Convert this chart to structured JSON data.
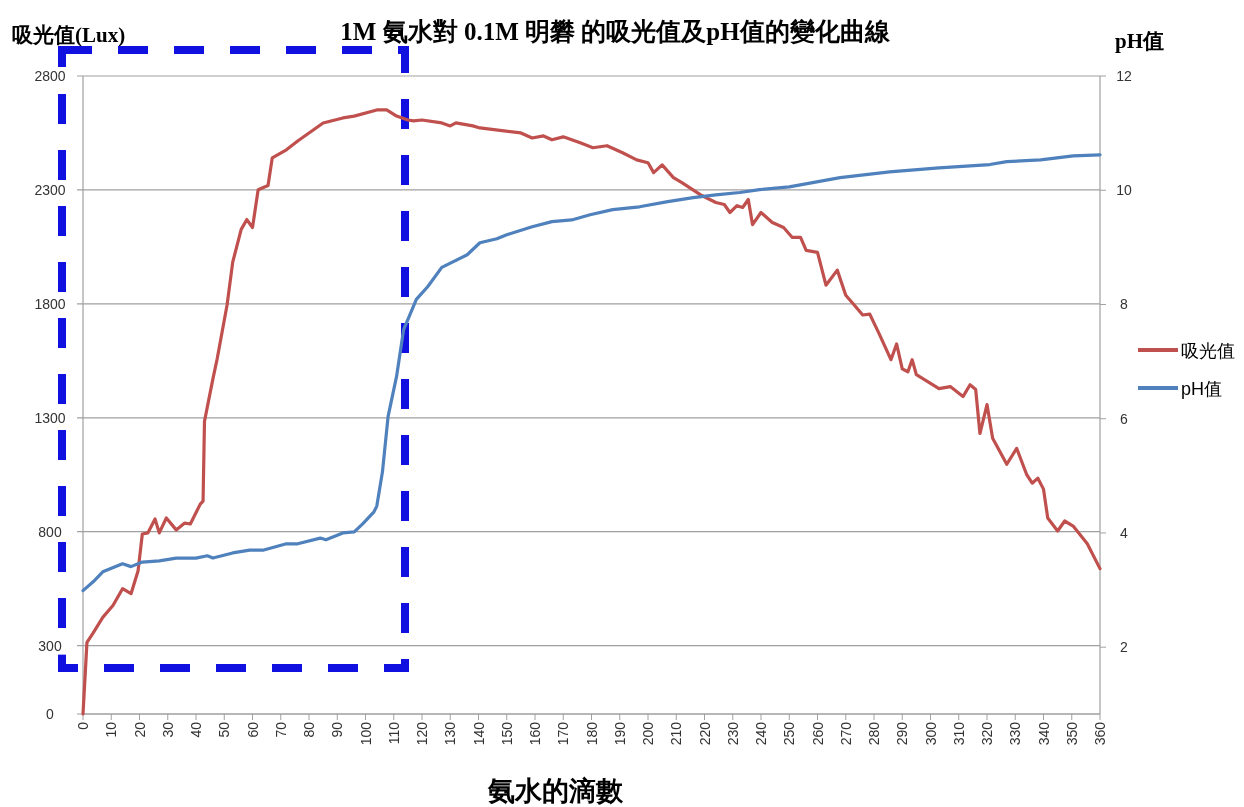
{
  "chart_data": {
    "type": "line",
    "title": "1M 氨水對 0.1M 明礬 的吸光值及pH值的變化曲線",
    "xlabel": "氨水的滴數",
    "ylabel": "吸光值(Lux)",
    "y2label": "pH值",
    "xlim": [
      0,
      360
    ],
    "xticks": [
      0,
      10,
      20,
      30,
      40,
      50,
      60,
      70,
      80,
      90,
      100,
      110,
      120,
      130,
      140,
      150,
      160,
      170,
      180,
      190,
      200,
      210,
      220,
      230,
      240,
      250,
      260,
      270,
      280,
      290,
      300,
      310,
      320,
      330,
      340,
      350,
      360
    ],
    "ylim": [
      0,
      2800
    ],
    "yticks": [
      0,
      300,
      800,
      1300,
      1800,
      2300,
      2800
    ],
    "y2lim": [
      0.83,
      12
    ],
    "y2ticks": [
      2,
      4,
      6,
      8,
      10,
      12
    ],
    "grid": "y",
    "legend": "right",
    "marker": "none",
    "line_style": "solid",
    "series": [
      {
        "name": "吸光值",
        "color": "#c0504d",
        "x": [
          0,
          1.4,
          3.5,
          7,
          10.6,
          14,
          17,
          19.5,
          21,
          23,
          25.5,
          27,
          29.5,
          33,
          36,
          38,
          41.5,
          42.5,
          43,
          46,
          47.5,
          51,
          53,
          56,
          58,
          60,
          62,
          65.5,
          67,
          72,
          76,
          80,
          85,
          92,
          96,
          104,
          107.5,
          111,
          115,
          117,
          120,
          127,
          130,
          132,
          138,
          140.5,
          155,
          159,
          163,
          166,
          170,
          176,
          180.5,
          185.5,
          191,
          196,
          200,
          202,
          205,
          209,
          212,
          218.5,
          224,
          227,
          229,
          231.5,
          233.5,
          235.5,
          237,
          240,
          244,
          248,
          251,
          254,
          256,
          260,
          263,
          267,
          270,
          273,
          276,
          278.5,
          282,
          286,
          288,
          290,
          292,
          293.5,
          295,
          299,
          303,
          307,
          311.5,
          314,
          316,
          317.5,
          320,
          322,
          327,
          330.5,
          334,
          336,
          338,
          340,
          341.5,
          345,
          347.5,
          350.5,
          355.5,
          360
        ],
        "values": [
          0,
          314,
          354,
          424,
          476,
          550,
          528,
          629,
          790,
          795,
          856,
          795,
          860,
          808,
          838,
          834,
          921,
          934,
          1284,
          1472,
          1559,
          1795,
          1983,
          2127,
          2170,
          2135,
          2301,
          2319,
          2441,
          2476,
          2515,
          2550,
          2594,
          2616,
          2624,
          2651,
          2651,
          2624,
          2607,
          2603,
          2607,
          2594,
          2581,
          2594,
          2581,
          2572,
          2550,
          2528,
          2537,
          2520,
          2533,
          2507,
          2485,
          2494,
          2463,
          2432,
          2419,
          2376,
          2410,
          2354,
          2332,
          2279,
          2245,
          2236,
          2201,
          2231,
          2223,
          2258,
          2148,
          2201,
          2157,
          2135,
          2092,
          2092,
          2035,
          2026,
          1882,
          1948,
          1838,
          1795,
          1751,
          1755,
          1664,
          1555,
          1624,
          1515,
          1502,
          1555,
          1489,
          1459,
          1428,
          1437,
          1393,
          1445,
          1424,
          1231,
          1358,
          1210,
          1096,
          1166,
          1052,
          1013,
          1035,
          987,
          860,
          803,
          847,
          825,
          747,
          638
        ]
      },
      {
        "name": "pH值",
        "color": "#4f81bd",
        "axis": "y2",
        "x": [
          0,
          3.5,
          7,
          14,
          17,
          21,
          27,
          33,
          40,
          44,
          46,
          53,
          59,
          64,
          72,
          76,
          84,
          86,
          92,
          96,
          99,
          103,
          104,
          106,
          108,
          111,
          113.5,
          118,
          122,
          127,
          136,
          140.5,
          146.5,
          150,
          159,
          166,
          173,
          179.5,
          187.5,
          197,
          207,
          216,
          224,
          232.5,
          239.5,
          250,
          268,
          285.5,
          303,
          321,
          327,
          339,
          350.5,
          360
        ],
        "values": [
          2.99,
          3.14,
          3.32,
          3.46,
          3.41,
          3.49,
          3.51,
          3.56,
          3.56,
          3.6,
          3.56,
          3.65,
          3.7,
          3.7,
          3.81,
          3.81,
          3.91,
          3.88,
          4.0,
          4.02,
          4.16,
          4.37,
          4.47,
          5.07,
          6.04,
          6.74,
          7.56,
          8.09,
          8.31,
          8.65,
          8.87,
          9.08,
          9.15,
          9.22,
          9.36,
          9.45,
          9.48,
          9.57,
          9.66,
          9.71,
          9.8,
          9.87,
          9.92,
          9.96,
          10.01,
          10.06,
          10.22,
          10.32,
          10.39,
          10.45,
          10.5,
          10.53,
          10.6,
          10.62
        ]
      }
    ]
  }
}
